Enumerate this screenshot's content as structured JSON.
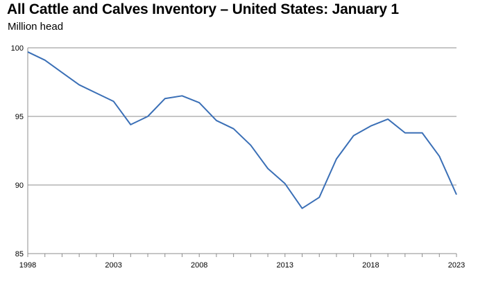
{
  "chart_data": {
    "type": "line",
    "title": "All Cattle and Calves Inventory – United States: January 1",
    "subtitle": "Million head",
    "xlabel": "",
    "ylabel": "",
    "xlim": [
      1998,
      2023
    ],
    "ylim": [
      85,
      100
    ],
    "xticks": [
      1998,
      2003,
      2008,
      2013,
      2018,
      2023
    ],
    "yticks": [
      85,
      90,
      95,
      100
    ],
    "grid": "horizontal",
    "series_color": "#3A6FB6",
    "x": [
      1998,
      1999,
      2000,
      2001,
      2002,
      2003,
      2004,
      2005,
      2006,
      2007,
      2008,
      2009,
      2010,
      2011,
      2012,
      2013,
      2014,
      2015,
      2016,
      2017,
      2018,
      2019,
      2020,
      2021,
      2022,
      2023
    ],
    "series": [
      {
        "values": [
          99.7,
          99.1,
          98.2,
          97.3,
          96.7,
          96.1,
          94.4,
          95.0,
          96.3,
          96.5,
          96.0,
          94.7,
          94.1,
          92.9,
          91.2,
          90.1,
          88.3,
          89.1,
          91.9,
          93.6,
          94.3,
          94.8,
          93.8,
          93.8,
          92.1,
          89.3
        ]
      }
    ]
  }
}
